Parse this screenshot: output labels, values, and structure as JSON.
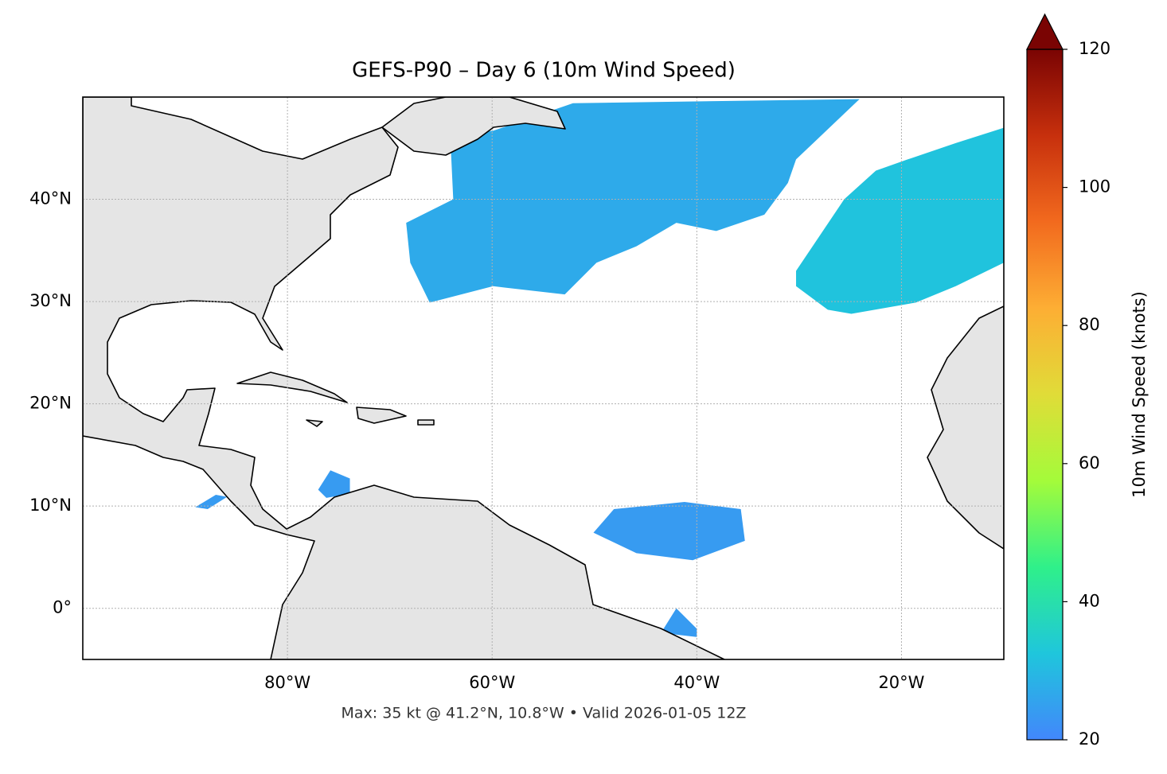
{
  "chart_data": {
    "type": "map",
    "title": "GEFS-P90 – Day 6 (10m Wind Speed)",
    "annotation": "Max: 35 kt @ 41.2°N, 10.8°W • Valid 2026-01-05 12Z",
    "xlim": [
      -100,
      -10
    ],
    "ylim": [
      -5,
      50
    ],
    "xticks": [
      {
        "value": -80,
        "label": "80°W"
      },
      {
        "value": -60,
        "label": "60°W"
      },
      {
        "value": -40,
        "label": "40°W"
      },
      {
        "value": -20,
        "label": "20°W"
      }
    ],
    "yticks": [
      {
        "value": 0,
        "label": "0°"
      },
      {
        "value": 10,
        "label": "10°N"
      },
      {
        "value": 20,
        "label": "20°N"
      },
      {
        "value": 30,
        "label": "30°N"
      },
      {
        "value": 40,
        "label": "40°N"
      }
    ],
    "grid": true,
    "colorbar": {
      "label": "10m Wind Speed (knots)",
      "lim": [
        20,
        120
      ],
      "ticks": [
        20,
        40,
        60,
        80,
        100,
        120
      ],
      "colors": [
        "#4287fb",
        "#1fc6dc",
        "#2ff08a",
        "#a4fb3a",
        "#e0dc38",
        "#fdae34",
        "#f26a1e",
        "#c7300d",
        "#7a0403"
      ]
    },
    "regions": [
      {
        "value": 27,
        "points": [
          [
            -68.4,
            37.7
          ],
          [
            -63.8,
            40.0
          ],
          [
            -64.1,
            46.3
          ],
          [
            -59.9,
            46.7
          ],
          [
            -52.1,
            49.4
          ],
          [
            -24.1,
            49.8
          ],
          [
            -30.3,
            43.9
          ],
          [
            -31.1,
            41.6
          ],
          [
            -33.4,
            38.5
          ],
          [
            -38.1,
            36.9
          ],
          [
            -42.0,
            37.7
          ],
          [
            -45.9,
            35.4
          ],
          [
            -49.8,
            33.8
          ],
          [
            -52.9,
            30.7
          ],
          [
            -59.9,
            31.5
          ],
          [
            -66.1,
            29.9
          ],
          [
            -68.0,
            33.8
          ]
        ]
      },
      {
        "value": 32,
        "points": [
          [
            -30.3,
            33.0
          ],
          [
            -25.6,
            40.0
          ],
          [
            -22.5,
            42.8
          ],
          [
            -19.4,
            43.9
          ],
          [
            -14.7,
            45.5
          ],
          [
            -10.0,
            47.0
          ],
          [
            -10.0,
            33.8
          ],
          [
            -14.7,
            31.5
          ],
          [
            -18.6,
            29.9
          ],
          [
            -24.9,
            28.8
          ],
          [
            -27.2,
            29.2
          ],
          [
            -30.3,
            31.5
          ]
        ]
      },
      {
        "value": 24,
        "points": [
          [
            -50.1,
            7.4
          ],
          [
            -48.1,
            9.7
          ],
          [
            -41.2,
            10.4
          ],
          [
            -35.7,
            9.7
          ],
          [
            -35.3,
            6.6
          ],
          [
            -40.4,
            4.7
          ],
          [
            -45.9,
            5.4
          ]
        ]
      },
      {
        "value": 24,
        "points": [
          [
            -43.5,
            -2.4
          ],
          [
            -42.0,
            0.0
          ],
          [
            -40.0,
            -2.0
          ],
          [
            -40.0,
            -2.8
          ]
        ]
      },
      {
        "value": 24,
        "points": [
          [
            -77.0,
            11.6
          ],
          [
            -75.8,
            13.5
          ],
          [
            -73.9,
            12.7
          ],
          [
            -73.9,
            11.2
          ],
          [
            -76.2,
            10.8
          ]
        ]
      },
      {
        "value": 24,
        "points": [
          [
            -89.0,
            9.9
          ],
          [
            -87.0,
            11.1
          ],
          [
            -85.9,
            10.9
          ],
          [
            -87.8,
            9.7
          ]
        ]
      }
    ]
  }
}
